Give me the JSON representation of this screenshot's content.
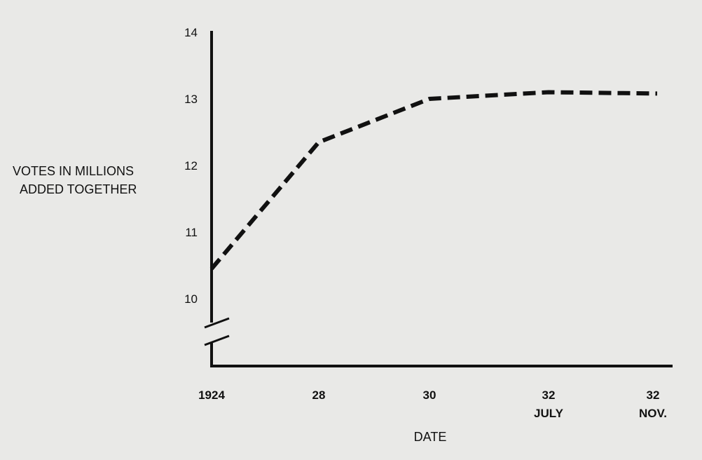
{
  "chart_data": {
    "type": "line",
    "title": "",
    "xlabel": "DATE",
    "ylabel_lines": [
      "VOTES IN MILLIONS",
      "ADDED TOGETHER"
    ],
    "categories": [
      [
        "1924"
      ],
      [
        "28"
      ],
      [
        "30"
      ],
      [
        "32",
        "JULY"
      ],
      [
        "32",
        "NOV."
      ]
    ],
    "yticks": [
      "10",
      "11",
      "12",
      "13",
      "14"
    ],
    "ylim": [
      9,
      14
    ],
    "y_axis_break": true,
    "grid": false,
    "line_style": "dashed",
    "color": "#111111",
    "series": [
      {
        "values": [
          10.45,
          12.35,
          13.0,
          13.1,
          13.08
        ]
      }
    ]
  }
}
